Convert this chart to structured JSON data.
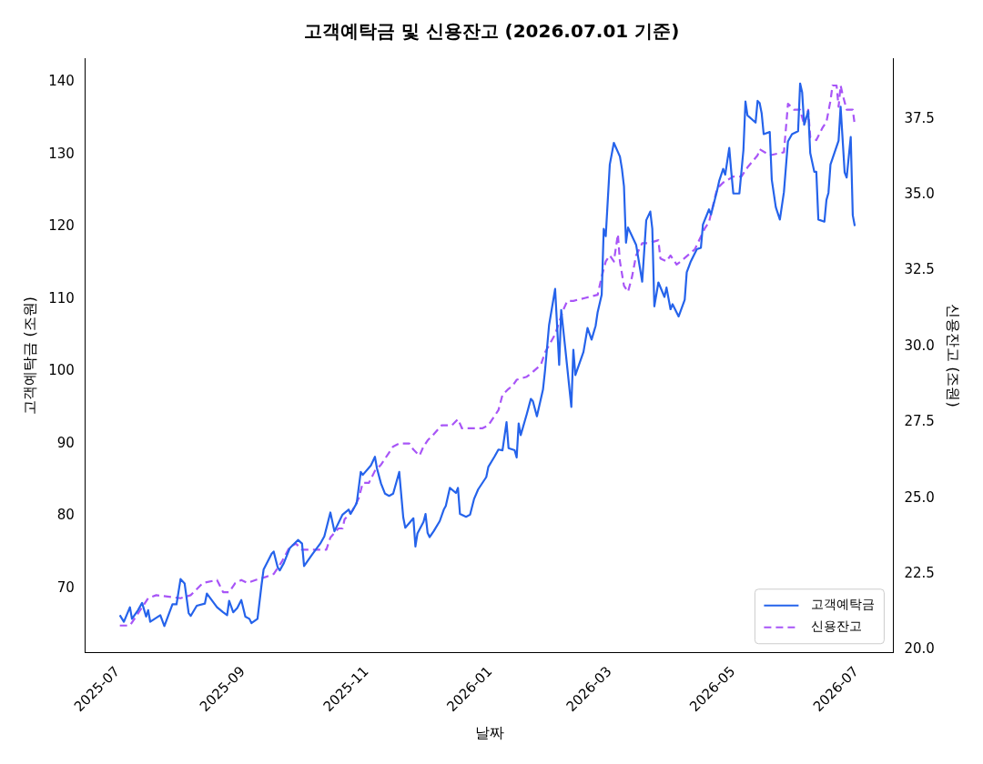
{
  "chart_data": {
    "type": "line",
    "title": "고객예탁금 및 신용잔고 (2026.07.01 기준)",
    "xlabel": "날짜",
    "ylabel": "고객예탁금 (조원)",
    "y2label": "신용잔고 (조원)",
    "legend": "bottom right",
    "grid": false,
    "marker": "none",
    "xlim": [
      "2025-06-15",
      "2026-07-19"
    ],
    "xticks": [
      {
        "value": "2025-07-01",
        "label": "2025-07"
      },
      {
        "value": "2025-09-01",
        "label": "2025-09"
      },
      {
        "value": "2025-11-01",
        "label": "2025-11"
      },
      {
        "value": "2026-01-01",
        "label": "2026-01"
      },
      {
        "value": "2026-03-01",
        "label": "2026-03"
      },
      {
        "value": "2026-05-01",
        "label": "2026-05"
      },
      {
        "value": "2026-07-01",
        "label": "2026-07"
      }
    ],
    "ylim": [
      61.1,
      143.3
    ],
    "yticks": [
      70,
      80,
      90,
      100,
      110,
      120,
      130,
      140
    ],
    "y2lim": [
      19.9,
      39.5
    ],
    "y2ticks": [
      {
        "value": 20,
        "label": "20.0"
      },
      {
        "value": 22.5,
        "label": "22.5"
      },
      {
        "value": 25,
        "label": "25.0"
      },
      {
        "value": 27.5,
        "label": "27.5"
      },
      {
        "value": 30,
        "label": "30.0"
      },
      {
        "value": 32.5,
        "label": "32.5"
      },
      {
        "value": 35,
        "label": "35.0"
      },
      {
        "value": 37.5,
        "label": "37.5"
      }
    ],
    "series": [
      {
        "name": "고객예탁금",
        "color": "#2563eb",
        "line_style": "solid",
        "x": [
          "2025-07-02",
          "2025-07-04",
          "2025-07-07",
          "2025-07-08",
          "2025-07-11",
          "2025-07-13",
          "2025-07-15",
          "2025-07-16",
          "2025-07-17",
          "2025-07-22",
          "2025-07-24",
          "2025-07-28",
          "2025-07-30",
          "2025-08-01",
          "2025-08-03",
          "2025-08-05",
          "2025-08-06",
          "2025-08-09",
          "2025-08-13",
          "2025-08-14",
          "2025-08-19",
          "2025-08-22",
          "2025-08-24",
          "2025-08-25",
          "2025-08-27",
          "2025-08-29",
          "2025-08-31",
          "2025-09-02",
          "2025-09-04",
          "2025-09-05",
          "2025-09-08",
          "2025-09-10",
          "2025-09-11",
          "2025-09-15",
          "2025-09-16",
          "2025-09-18",
          "2025-09-19",
          "2025-09-21",
          "2025-09-24",
          "2025-09-28",
          "2025-09-30",
          "2025-10-01",
          "2025-10-05",
          "2025-10-09",
          "2025-10-11",
          "2025-10-13",
          "2025-10-14",
          "2025-10-16",
          "2025-10-20",
          "2025-10-23",
          "2025-10-24",
          "2025-10-27",
          "2025-10-29",
          "2025-10-30",
          "2025-11-03",
          "2025-11-05",
          "2025-11-06",
          "2025-11-08",
          "2025-11-10",
          "2025-11-12",
          "2025-11-14",
          "2025-11-17",
          "2025-11-19",
          "2025-11-20",
          "2025-11-24",
          "2025-11-25",
          "2025-11-26",
          "2025-11-29",
          "2025-11-30",
          "2025-12-01",
          "2025-12-02",
          "2025-12-04",
          "2025-12-07",
          "2025-12-09",
          "2025-12-10",
          "2025-12-12",
          "2025-12-15",
          "2025-12-16",
          "2025-12-17",
          "2025-12-20",
          "2025-12-22",
          "2025-12-24",
          "2025-12-26",
          "2025-12-30",
          "2025-12-31",
          "2026-01-03",
          "2026-01-05",
          "2026-01-07",
          "2026-01-09",
          "2026-01-10",
          "2026-01-13",
          "2026-01-14",
          "2026-01-15",
          "2026-01-16",
          "2026-01-19",
          "2026-01-21",
          "2026-01-22",
          "2026-01-24",
          "2026-01-27",
          "2026-01-28",
          "2026-01-30",
          "2026-02-02",
          "2026-02-04",
          "2026-02-05",
          "2026-02-07",
          "2026-02-10",
          "2026-02-11",
          "2026-02-12",
          "2026-02-16",
          "2026-02-18",
          "2026-02-20",
          "2026-02-22",
          "2026-02-23",
          "2026-02-25",
          "2026-02-26",
          "2026-02-27",
          "2026-03-01",
          "2026-03-03",
          "2026-03-06",
          "2026-03-07",
          "2026-03-08",
          "2026-03-09",
          "2026-03-10",
          "2026-03-14",
          "2026-03-17",
          "2026-03-19",
          "2026-03-21",
          "2026-03-22",
          "2026-03-23",
          "2026-03-25",
          "2026-03-28",
          "2026-03-29",
          "2026-03-31",
          "2026-04-01",
          "2026-04-04",
          "2026-04-07",
          "2026-04-08",
          "2026-04-10",
          "2026-04-13",
          "2026-04-15",
          "2026-04-16",
          "2026-04-19",
          "2026-04-20",
          "2026-04-23",
          "2026-04-24",
          "2026-04-26",
          "2026-04-27",
          "2026-04-29",
          "2026-04-30",
          "2026-05-01",
          "2026-05-04",
          "2026-05-06",
          "2026-05-07",
          "2026-05-08",
          "2026-05-12",
          "2026-05-13",
          "2026-05-14",
          "2026-05-15",
          "2026-05-16",
          "2026-05-19",
          "2026-05-20",
          "2026-05-22",
          "2026-05-24",
          "2026-05-26",
          "2026-05-28",
          "2026-05-30",
          "2026-06-02",
          "2026-06-03",
          "2026-06-04",
          "2026-06-05",
          "2026-06-07",
          "2026-06-08",
          "2026-06-10",
          "2026-06-11",
          "2026-06-12",
          "2026-06-15",
          "2026-06-16",
          "2026-06-17",
          "2026-06-18",
          "2026-06-22",
          "2026-06-23",
          "2026-06-25",
          "2026-06-26",
          "2026-06-28",
          "2026-06-29",
          "2026-06-30"
        ],
        "values": [
          66.3,
          65.4,
          67.4,
          65.8,
          67.0,
          68.0,
          66.1,
          67.0,
          65.4,
          66.3,
          64.8,
          67.8,
          67.8,
          71.3,
          70.7,
          66.6,
          66.2,
          67.6,
          67.9,
          69.3,
          67.4,
          66.7,
          66.3,
          68.3,
          66.7,
          67.3,
          68.4,
          66.1,
          65.8,
          65.2,
          65.8,
          70.5,
          72.6,
          74.8,
          75.1,
          72.9,
          72.5,
          73.5,
          75.6,
          76.7,
          76.2,
          73.1,
          74.7,
          76.2,
          77.2,
          79.4,
          80.5,
          77.9,
          80.2,
          80.9,
          80.3,
          81.8,
          86.1,
          85.7,
          87.0,
          88.2,
          86.6,
          84.5,
          83.1,
          82.8,
          83.1,
          86.1,
          79.8,
          78.4,
          79.7,
          75.8,
          77.6,
          79.2,
          80.3,
          77.7,
          77.1,
          77.9,
          79.3,
          80.9,
          81.4,
          83.9,
          83.2,
          83.9,
          80.3,
          79.9,
          80.2,
          82.4,
          83.7,
          85.4,
          86.8,
          88.2,
          89.2,
          89.1,
          93.0,
          89.4,
          89.1,
          88.1,
          92.8,
          91.2,
          94.1,
          96.2,
          95.9,
          93.8,
          97.5,
          100.1,
          106.4,
          111.4,
          100.9,
          108.5,
          103.2,
          95.1,
          103.0,
          99.5,
          102.7,
          106.0,
          104.4,
          106.3,
          108.2,
          110.6,
          119.7,
          118.7,
          128.6,
          131.6,
          129.7,
          128.0,
          125.6,
          117.8,
          119.9,
          117.5,
          112.4,
          120.9,
          122.1,
          119.7,
          109.0,
          112.3,
          110.3,
          111.6,
          108.6,
          109.3,
          107.6,
          109.9,
          113.7,
          115.2,
          116.9,
          117.1,
          120.3,
          122.4,
          121.7,
          125.0,
          126.3,
          128.0,
          127.2,
          130.9,
          127.6,
          124.6,
          124.6,
          130.6,
          137.3,
          135.4,
          134.4,
          137.4,
          137.1,
          135.7,
          132.8,
          133.1,
          126.5,
          122.7,
          121.0,
          124.8,
          131.8,
          132.8,
          133.2,
          139.8,
          138.6,
          134.1,
          136.0,
          130.2,
          127.6,
          127.6,
          121.0,
          120.7,
          123.7,
          124.7,
          128.6,
          131.9,
          136.6,
          127.5,
          126.8,
          132.4,
          121.6,
          120.1
        ]
      },
      {
        "name": "신용잔고",
        "color": "#a855f7",
        "line_style": "dashed",
        "axis": "y2",
        "x": [
          "2025-07-02",
          "2025-07-07",
          "2025-07-11",
          "2025-07-16",
          "2025-07-20",
          "2025-08-01",
          "2025-08-06",
          "2025-08-12",
          "2025-08-19",
          "2025-08-22",
          "2025-08-25",
          "2025-08-28",
          "2025-08-31",
          "2025-09-03",
          "2025-09-07",
          "2025-09-12",
          "2025-09-16",
          "2025-09-20",
          "2025-09-24",
          "2025-09-27",
          "2025-09-30",
          "2025-10-07",
          "2025-10-12",
          "2025-10-14",
          "2025-10-18",
          "2025-10-20",
          "2025-10-21",
          "2025-10-25",
          "2025-10-28",
          "2025-10-30",
          "2025-11-02",
          "2025-11-05",
          "2025-11-08",
          "2025-11-12",
          "2025-11-14",
          "2025-11-17",
          "2025-11-22",
          "2025-11-24",
          "2025-11-27",
          "2025-11-29",
          "2025-12-01",
          "2025-12-04",
          "2025-12-08",
          "2025-12-13",
          "2025-12-16",
          "2025-12-18",
          "2025-12-22",
          "2025-12-28",
          "2025-12-31",
          "2026-01-03",
          "2026-01-05",
          "2026-01-07",
          "2026-01-10",
          "2026-01-12",
          "2026-01-14",
          "2026-01-19",
          "2026-01-21",
          "2026-01-26",
          "2026-01-28",
          "2026-02-02",
          "2026-02-04",
          "2026-02-06",
          "2026-02-08",
          "2026-02-11",
          "2026-02-17",
          "2026-02-23",
          "2026-02-25",
          "2026-02-27",
          "2026-03-01",
          "2026-03-03",
          "2026-03-05",
          "2026-03-06",
          "2026-03-08",
          "2026-03-10",
          "2026-03-12",
          "2026-03-14",
          "2026-03-17",
          "2026-03-20",
          "2026-03-25",
          "2026-03-26",
          "2026-03-29",
          "2026-03-31",
          "2026-04-03",
          "2026-04-05",
          "2026-04-12",
          "2026-04-17",
          "2026-04-19",
          "2026-04-23",
          "2026-04-26",
          "2026-05-01",
          "2026-05-05",
          "2026-05-08",
          "2026-05-13",
          "2026-05-14",
          "2026-05-19",
          "2026-05-26",
          "2026-05-28",
          "2026-05-31",
          "2026-06-03",
          "2026-06-05",
          "2026-06-07",
          "2026-06-08",
          "2026-06-11",
          "2026-06-14",
          "2026-06-16",
          "2026-06-18",
          "2026-06-19",
          "2026-06-21",
          "2026-06-22",
          "2026-06-23",
          "2026-06-24",
          "2026-06-26",
          "2026-06-29",
          "2026-06-30"
        ],
        "values": [
          20.8,
          20.8,
          21.2,
          21.7,
          21.8,
          21.7,
          21.8,
          22.2,
          22.3,
          21.9,
          21.9,
          22.2,
          22.3,
          22.2,
          22.3,
          22.4,
          22.5,
          22.9,
          23.4,
          23.5,
          23.3,
          23.3,
          23.3,
          23.7,
          24.0,
          24.0,
          24.3,
          24.6,
          25.0,
          25.5,
          25.5,
          25.9,
          26.1,
          26.5,
          26.7,
          26.8,
          26.8,
          26.6,
          26.4,
          26.7,
          26.9,
          27.1,
          27.4,
          27.4,
          27.6,
          27.3,
          27.3,
          27.3,
          27.4,
          27.7,
          27.9,
          28.4,
          28.6,
          28.7,
          28.9,
          29.0,
          29.1,
          29.4,
          29.8,
          30.4,
          30.8,
          31.2,
          31.5,
          31.5,
          31.6,
          31.7,
          32.3,
          32.8,
          33.0,
          32.8,
          33.7,
          32.8,
          32.0,
          31.8,
          32.3,
          33.0,
          33.4,
          33.4,
          33.5,
          32.9,
          32.8,
          33.0,
          32.7,
          32.8,
          33.2,
          33.9,
          34.1,
          35.2,
          35.4,
          35.6,
          35.6,
          35.9,
          36.3,
          36.5,
          36.3,
          36.4,
          38.0,
          37.8,
          37.8,
          37.3,
          37.8,
          36.9,
          36.8,
          37.2,
          37.4,
          38.1,
          38.6,
          38.6,
          37.9,
          38.6,
          38.3,
          37.8,
          37.8,
          37.3
        ]
      }
    ]
  }
}
